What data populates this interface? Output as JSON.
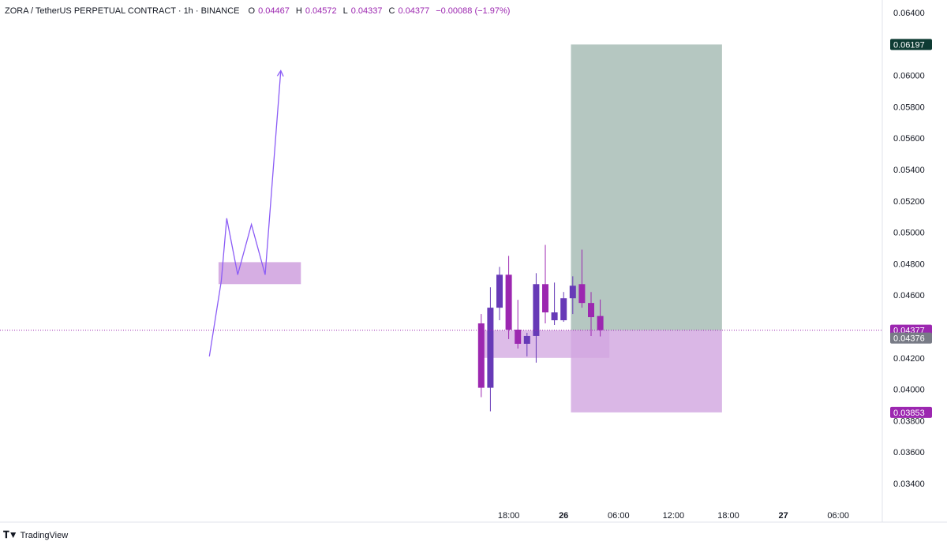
{
  "header": {
    "symbol": "ZORA / TetherUS PERPETUAL CONTRACT · 1h · BINANCE",
    "open_label": "O",
    "open": "0.04467",
    "high_label": "H",
    "high": "0.04572",
    "low_label": "L",
    "low": "0.04337",
    "close_label": "C",
    "close": "0.04377",
    "change": "−0.00088 (−1.97%)"
  },
  "footer": {
    "logo": "TradingView"
  },
  "colors": {
    "candle": "#9c27b0",
    "candle_up": "#673ab7",
    "zone": "#d1a5e0",
    "target": "#b5c7c1",
    "tag_purple": "#9c27b0",
    "tag_gray": "#787b86",
    "tag_dark": "#0e3b33",
    "drawing": "#8b5cf6"
  },
  "chart_data": {
    "type": "candlestick",
    "y_axis": {
      "min": 0.033,
      "max": 0.0645,
      "ticks": [
        "0.06400",
        "0.06000",
        "0.05800",
        "0.05600",
        "0.05400",
        "0.05200",
        "0.05000",
        "0.04800",
        "0.04600",
        "0.04200",
        "0.04000",
        "0.03800",
        "0.03600",
        "0.03400"
      ]
    },
    "x_axis": {
      "ticks": [
        {
          "label": "18:00",
          "bar": 3,
          "bold": false
        },
        {
          "label": "26",
          "bar": 9,
          "bold": true
        },
        {
          "label": "06:00",
          "bar": 15,
          "bold": false
        },
        {
          "label": "12:00",
          "bar": 21,
          "bold": false
        },
        {
          "label": "18:00",
          "bar": 27,
          "bold": false
        },
        {
          "label": "27",
          "bar": 33,
          "bold": true
        },
        {
          "label": "06:00",
          "bar": 39,
          "bold": false
        }
      ]
    },
    "candles": [
      {
        "o": 0.0442,
        "h": 0.0448,
        "l": 0.0395,
        "c": 0.0401
      },
      {
        "o": 0.0401,
        "h": 0.0465,
        "l": 0.0386,
        "c": 0.0452
      },
      {
        "o": 0.0452,
        "h": 0.0478,
        "l": 0.0444,
        "c": 0.0473
      },
      {
        "o": 0.0473,
        "h": 0.0485,
        "l": 0.0432,
        "c": 0.0438
      },
      {
        "o": 0.0438,
        "h": 0.0457,
        "l": 0.0426,
        "c": 0.0429
      },
      {
        "o": 0.0429,
        "h": 0.0436,
        "l": 0.0421,
        "c": 0.0434
      },
      {
        "o": 0.0434,
        "h": 0.0474,
        "l": 0.0417,
        "c": 0.0467
      },
      {
        "o": 0.0467,
        "h": 0.0492,
        "l": 0.0442,
        "c": 0.0449
      },
      {
        "o": 0.0444,
        "h": 0.0468,
        "l": 0.0441,
        "c": 0.0449
      },
      {
        "o": 0.0444,
        "h": 0.0462,
        "l": 0.0443,
        "c": 0.0458
      },
      {
        "o": 0.0458,
        "h": 0.0472,
        "l": 0.0448,
        "c": 0.0466
      },
      {
        "o": 0.0467,
        "h": 0.0489,
        "l": 0.0452,
        "c": 0.0455
      },
      {
        "o": 0.0455,
        "h": 0.0462,
        "l": 0.0434,
        "c": 0.0446
      },
      {
        "o": 0.04467,
        "h": 0.04572,
        "l": 0.04337,
        "c": 0.04377
      }
    ],
    "current_price": 0.04377,
    "price_tags": [
      {
        "label": "0.06197",
        "value": 0.06197,
        "color": "#0e3b33"
      },
      {
        "label": "0.04377",
        "value": 0.04377,
        "color": "#9c27b0"
      },
      {
        "label": "0.04376",
        "value": 0.043265,
        "color": "#787b86"
      },
      {
        "label": "0.03853",
        "value": 0.03853,
        "color": "#9c27b0"
      }
    ],
    "position": {
      "entry": 0.04376,
      "target": 0.06197,
      "stop": 0.03853,
      "start_bar": 10.3,
      "end_bar": 26.8
    },
    "demand_zone": {
      "top": 0.04376,
      "bottom": 0.042,
      "start_bar": 0.2,
      "end_bar": 14.5
    },
    "projection": {
      "zone": {
        "top": 0.0481,
        "bottom": 0.0467,
        "start_bar": -28.2,
        "end_bar": -19.2
      },
      "path": [
        {
          "bar": -29.2,
          "price": 0.0421
        },
        {
          "bar": -27.9,
          "price": 0.0469
        },
        {
          "bar": -27.3,
          "price": 0.0509
        },
        {
          "bar": -26.1,
          "price": 0.0473
        },
        {
          "bar": -24.6,
          "price": 0.0505
        },
        {
          "bar": -23.1,
          "price": 0.0473
        },
        {
          "bar": -21.4,
          "price": 0.0603
        }
      ]
    }
  }
}
